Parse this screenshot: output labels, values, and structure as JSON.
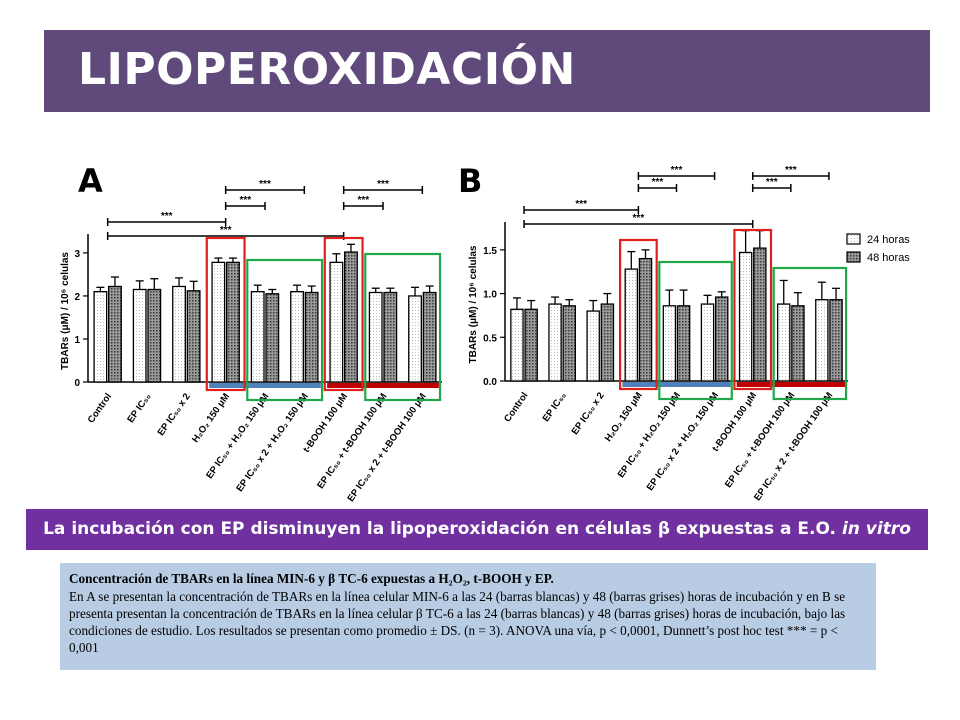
{
  "header": {
    "title": "LIPOPEROXIDACIÓN"
  },
  "panels": {
    "a_label": "A",
    "b_label": "B"
  },
  "conclusion": {
    "prefix": "La incubación con EP disminuyen la lipoperoxidación en células β expuestas a E.O. ",
    "suffix": "in vitro"
  },
  "caption": {
    "title": "Concentración de TBARs en la línea MIN-6 y β TC-6 expuestas a H₂O₂, t-BOOH y EP.",
    "body": "En A se presentan la concentración de TBARs en la línea celular MIN-6 a las 24 (barras blancas) y 48 (barras grises) horas de incubación y en B se presenta presentan la concentración de TBARs en la línea celular β TC-6 a las 24 (barras blancas) y 48 (barras grises) horas de incubación, bajo las condiciones de estudio. Los resultados se presentan como promedio ± DS. (n = 3). ANOVA una vía, p < 0,0001, Dunnett’s post hoc test *** = p < 0,001"
  },
  "colors": {
    "title_bar": "#604a7b",
    "conclusion_bar": "#7030a0",
    "caption_bg": "#b8cce4",
    "red_box": "#e0201e",
    "green_box": "#1fa84a",
    "blue_band": "#4f81bd",
    "red_band": "#c00000"
  },
  "chart_data": [
    {
      "type": "bar",
      "panel": "A",
      "ylabel": "TBARs (μM) / 10⁶ celulas",
      "ylim": [
        0,
        3.3
      ],
      "yticks": [
        0,
        1,
        2,
        3
      ],
      "categories": [
        "Control",
        "EP IC₅₀",
        "EP IC₅₀ x 2",
        "H₂O₂ 150 μM",
        "EP IC₅₀ + H₂O₂ 150 μM",
        "EP IC₅₀ x 2 + H₂O₂ 150 μM",
        "t-BOOH 100 μM",
        "EP IC₅₀ + t-BOOH 100 μM",
        "EP IC₅₀ x 2 + t-BOOH 100 μM"
      ],
      "series": [
        {
          "name": "24 horas",
          "values": [
            2.1,
            2.15,
            2.22,
            2.78,
            2.1,
            2.1,
            2.78,
            2.08,
            2.0
          ],
          "errors": [
            0.1,
            0.2,
            0.2,
            0.1,
            0.15,
            0.15,
            0.2,
            0.1,
            0.2
          ]
        },
        {
          "name": "48 horas",
          "values": [
            2.22,
            2.15,
            2.12,
            2.78,
            2.05,
            2.08,
            3.02,
            2.08,
            2.08
          ],
          "errors": [
            0.22,
            0.25,
            0.22,
            0.1,
            0.1,
            0.15,
            0.18,
            0.1,
            0.15
          ]
        }
      ],
      "significance": [
        {
          "from": 0,
          "to": 3,
          "label": "***"
        },
        {
          "from": 0,
          "to": 6,
          "label": "***"
        },
        {
          "from": 3,
          "to": 4,
          "label": "***"
        },
        {
          "from": 3,
          "to": 5,
          "label": "***"
        },
        {
          "from": 6,
          "to": 7,
          "label": "***"
        },
        {
          "from": 6,
          "to": 8,
          "label": "***"
        }
      ]
    },
    {
      "type": "bar",
      "panel": "B",
      "ylabel": "TBARs (μM) / 10⁶ celulas",
      "ylim": [
        0,
        1.75
      ],
      "yticks": [
        0.0,
        0.5,
        1.0,
        1.5
      ],
      "yticklabels": [
        "0.0",
        "0.5",
        "1.0",
        "1.5"
      ],
      "legend_position": "top-right",
      "categories": [
        "Control",
        "EP IC₅₀",
        "EP IC₅₀ x 2",
        "H₂O₂ 150 μM",
        "EP IC₅₀ + H₂O₂ 150 μM",
        "EP IC₅₀ x 2 + H₂O₂ 150 μM",
        "t-BOOH 100 μM",
        "EP IC₅₀ + t-BOOH 100 μM",
        "EP IC₅₀ x 2 + t-BOOH 100 μM"
      ],
      "series": [
        {
          "name": "24 horas",
          "values": [
            0.82,
            0.88,
            0.8,
            1.28,
            0.86,
            0.88,
            1.47,
            0.88,
            0.93
          ],
          "errors": [
            0.13,
            0.08,
            0.12,
            0.2,
            0.18,
            0.1,
            0.25,
            0.27,
            0.2
          ]
        },
        {
          "name": "48 horas",
          "values": [
            0.82,
            0.86,
            0.88,
            1.4,
            0.86,
            0.96,
            1.52,
            0.86,
            0.93
          ],
          "errors": [
            0.1,
            0.07,
            0.12,
            0.1,
            0.18,
            0.06,
            0.2,
            0.15,
            0.13
          ]
        }
      ],
      "significance": [
        {
          "from": 0,
          "to": 3,
          "label": "***"
        },
        {
          "from": 0,
          "to": 6,
          "label": "***"
        },
        {
          "from": 3,
          "to": 4,
          "label": "***"
        },
        {
          "from": 3,
          "to": 5,
          "label": "***"
        },
        {
          "from": 6,
          "to": 7,
          "label": "***"
        },
        {
          "from": 6,
          "to": 8,
          "label": "***"
        }
      ]
    }
  ]
}
